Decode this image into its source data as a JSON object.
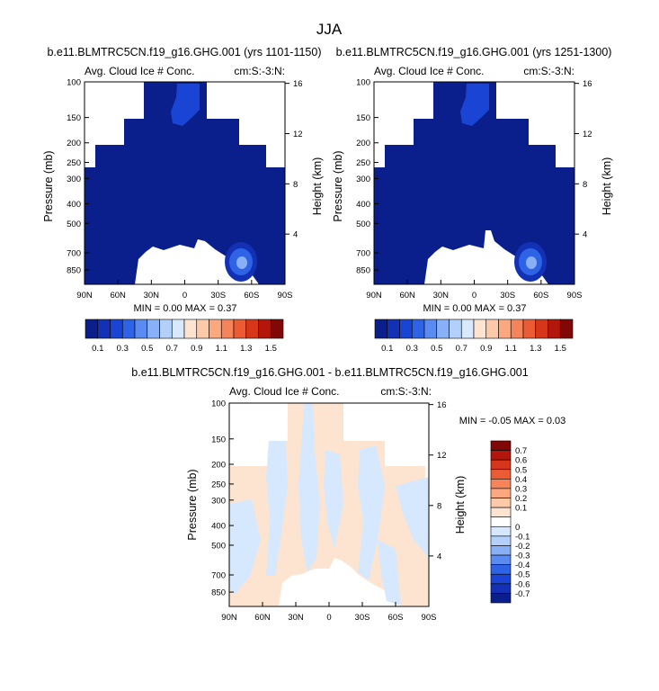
{
  "figure": {
    "title": "JJA"
  },
  "colors": {
    "seq": [
      "#0a1f8c",
      "#1231b5",
      "#1a44d3",
      "#2f63e6",
      "#5a8bf0",
      "#88b0f6",
      "#b3d0fa",
      "#d9e9fd",
      "#fde4d0",
      "#fcc9a9",
      "#fba87f",
      "#f6845a",
      "#ec5c34",
      "#d63619",
      "#b3170b",
      "#820808"
    ],
    "diff": [
      "#0a1f8c",
      "#1231b5",
      "#1a44d3",
      "#2f63e6",
      "#5a8bf0",
      "#88b0f6",
      "#b3d0fa",
      "#d6e8fd",
      "#ffffff",
      "#fde4d0",
      "#fcc9a9",
      "#fba87f",
      "#f6845a",
      "#ec5c34",
      "#d63619",
      "#b3170b",
      "#820808"
    ]
  },
  "chart_data": [
    {
      "type": "heatmap",
      "title": "b.e11.BLMTRC5CN.f19_g16.GHG.001 (yrs 1101-1150)",
      "subtitle_left": "Avg. Cloud Ice # Conc.",
      "subtitle_right": "cm:S:-3:N:",
      "xlabel": "",
      "ylabel": "Pressure (mb)",
      "y2label": "Height (km)",
      "x_ticks": [
        "90N",
        "60N",
        "30N",
        "0",
        "30S",
        "60S",
        "90S"
      ],
      "y_ticks": [
        "100",
        "150",
        "200",
        "250",
        "300",
        "400",
        "500",
        "700",
        "850"
      ],
      "y2_ticks": [
        "16",
        "12",
        "8",
        "4"
      ],
      "ylim": [
        100,
        1000
      ],
      "stats": "MIN =  0.00  MAX =  0.37",
      "colorbar_labels": [
        "0.1",
        "0.3",
        "0.5",
        "0.7",
        "0.9",
        "1.1",
        "1.3",
        "1.5"
      ],
      "colorbar_levels": [
        0,
        0.1,
        0.2,
        0.3,
        0.4,
        0.5,
        0.6,
        0.7,
        0.8,
        0.9,
        1.0,
        1.1,
        1.2,
        1.3,
        1.4,
        1.5
      ],
      "min": 0.0,
      "max": 0.37
    },
    {
      "type": "heatmap",
      "title": "b.e11.BLMTRC5CN.f19_g16.GHG.001 (yrs 1251-1300)",
      "subtitle_left": "Avg. Cloud Ice # Conc.",
      "subtitle_right": "cm:S:-3:N:",
      "xlabel": "",
      "ylabel": "Pressure (mb)",
      "y2label": "Height (km)",
      "x_ticks": [
        "90N",
        "60N",
        "30N",
        "0",
        "30S",
        "60S",
        "90S"
      ],
      "y_ticks": [
        "100",
        "150",
        "200",
        "250",
        "300",
        "400",
        "500",
        "700",
        "850"
      ],
      "y2_ticks": [
        "16",
        "12",
        "8",
        "4"
      ],
      "ylim": [
        100,
        1000
      ],
      "stats": "MIN =  0.00  MAX =  0.37",
      "colorbar_labels": [
        "0.1",
        "0.3",
        "0.5",
        "0.7",
        "0.9",
        "1.1",
        "1.3",
        "1.5"
      ],
      "colorbar_levels": [
        0,
        0.1,
        0.2,
        0.3,
        0.4,
        0.5,
        0.6,
        0.7,
        0.8,
        0.9,
        1.0,
        1.1,
        1.2,
        1.3,
        1.4,
        1.5
      ],
      "min": 0.0,
      "max": 0.37
    },
    {
      "type": "heatmap",
      "title": "b.e11.BLMTRC5CN.f19_g16.GHG.001 - b.e11.BLMTRC5CN.f19_g16.GHG.001",
      "subtitle_left": "Avg. Cloud Ice # Conc.",
      "subtitle_right": "cm:S:-3:N:",
      "xlabel": "",
      "ylabel": "Pressure (mb)",
      "y2label": "Height (km)",
      "x_ticks": [
        "90N",
        "60N",
        "30N",
        "0",
        "30S",
        "60S",
        "90S"
      ],
      "y_ticks": [
        "100",
        "150",
        "200",
        "250",
        "300",
        "400",
        "500",
        "700",
        "850"
      ],
      "y2_ticks": [
        "16",
        "12",
        "8",
        "4"
      ],
      "ylim": [
        100,
        1000
      ],
      "stats": "MIN = -0.05  MAX =  0.03",
      "colorbar_labels": [
        "0.7",
        "0.6",
        "0.5",
        "0.4",
        "0.3",
        "0.2",
        "0.1",
        "0",
        "-0.1",
        "-0.2",
        "-0.3",
        "-0.4",
        "-0.5",
        "-0.6",
        "-0.7"
      ],
      "min": -0.05,
      "max": 0.03
    }
  ]
}
